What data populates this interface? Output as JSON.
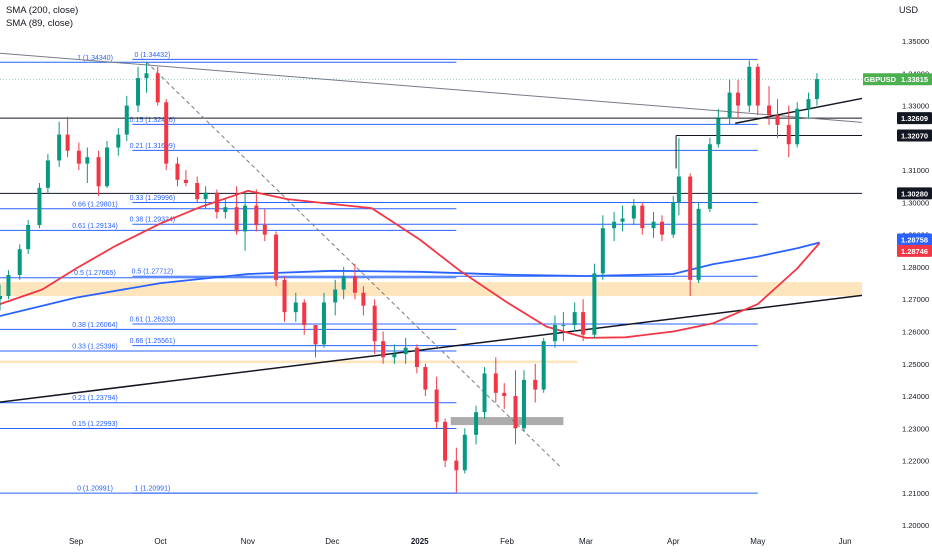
{
  "indicators": [
    "SMA (200, close)",
    "SMA (89, close)"
  ],
  "currency_label": "USD",
  "chart_data": {
    "type": "candlestick",
    "symbol": "GBPUSD",
    "last_price": "1.33815",
    "y_axis": {
      "ticks": [
        "1.35000",
        "1.34000",
        "1.33000",
        "1.32000",
        "1.31000",
        "1.30000",
        "1.29000",
        "1.28000",
        "1.27000",
        "1.26000",
        "1.25000",
        "1.24000",
        "1.23000",
        "1.22000",
        "1.21000",
        "1.20000"
      ],
      "ylim": [
        1.1985,
        1.3565
      ]
    },
    "x_axis": {
      "labels": [
        {
          "text": "Sep",
          "date": "2024-09-01"
        },
        {
          "text": "Oct",
          "date": "2024-10-01"
        },
        {
          "text": "Nov",
          "date": "2024-11-01"
        },
        {
          "text": "Dec",
          "date": "2024-12-01"
        },
        {
          "text": "2025",
          "date": "2025-01-01"
        },
        {
          "text": "Feb",
          "date": "2025-02-01"
        },
        {
          "text": "Mar",
          "date": "2025-03-01"
        },
        {
          "text": "Apr",
          "date": "2025-04-01"
        },
        {
          "text": "May",
          "date": "2025-05-01"
        },
        {
          "text": "Jun",
          "date": "2025-06-01"
        }
      ],
      "xlim": [
        "2024-08-05",
        "2025-06-07"
      ]
    },
    "price_tags": [
      {
        "value": 1.33815,
        "label": "1.33815",
        "color": "#4caf50",
        "symbol": "GBPUSD"
      },
      {
        "value": 1.32609,
        "label": "1.32609",
        "color": "#131722"
      },
      {
        "value": 1.3207,
        "label": "1.32070",
        "color": "#131722"
      },
      {
        "value": 1.3028,
        "label": "1.30280",
        "color": "#131722"
      },
      {
        "value": 1.28758,
        "label": "1.28758",
        "color": "#2962ff"
      },
      {
        "value": 1.28746,
        "label": "1.28746",
        "color": "#f23645"
      }
    ],
    "horizontal_lines": [
      {
        "value": 1.32609,
        "from": "2024-08-05",
        "to": "2025-06-07"
      },
      {
        "value": 1.3028,
        "from": "2024-08-05",
        "to": "2025-06-07"
      },
      {
        "value": 1.3207,
        "from": "2025-04-02",
        "to": "2025-06-07"
      }
    ],
    "fib_retracements": [
      {
        "color": "#2962ff",
        "from": "2024-09-21",
        "to": "2025-05-01",
        "levels": [
          {
            "label": "0 (1.34432)",
            "value": 1.34432
          },
          {
            "label": "0.15 (1.32416)",
            "value": 1.32416
          },
          {
            "label": "0.21 (1.31609)",
            "value": 1.31609
          },
          {
            "label": "0.33 (1.29996)",
            "value": 1.29996
          },
          {
            "label": "0.38 (1.29324)",
            "value": 1.29324
          },
          {
            "label": "0.5 (1.27712)",
            "value": 1.27712
          },
          {
            "label": "0.61 (1.26233)",
            "value": 1.26233
          },
          {
            "label": "0.66 (1.25561)",
            "value": 1.25561
          },
          {
            "label": "1 (1.20991)",
            "value": 1.20991
          }
        ]
      },
      {
        "color": "#2962ff",
        "from": "2024-08-05",
        "to": "2025-01-14",
        "levels": [
          {
            "label": "1 (1.34340)",
            "value": 1.3434
          },
          {
            "label": "0.66 (1.29801)",
            "value": 1.29801
          },
          {
            "label": "0.61 (1.29134)",
            "value": 1.29134
          },
          {
            "label": "0.5 (1.27665)",
            "value": 1.27665
          },
          {
            "label": "0.38 (1.26064)",
            "value": 1.26064
          },
          {
            "label": "0.33 (1.25396)",
            "value": 1.25396
          },
          {
            "label": "0.21 (1.23794)",
            "value": 1.23794
          },
          {
            "label": "0.15 (1.22993)",
            "value": 1.22993
          },
          {
            "label": "0 (1.20991)",
            "value": 1.20991
          }
        ]
      }
    ],
    "zones": [
      {
        "from": "2024-08-05",
        "to": "2025-06-07",
        "low": 1.271,
        "high": 1.2753,
        "color": "#ffe0b2"
      },
      {
        "from": "2024-08-05",
        "to": "2025-02-26",
        "low": 1.2502,
        "high": 1.251,
        "color": "#ffe0b2"
      },
      {
        "from": "2025-01-12",
        "to": "2025-02-21",
        "low": 1.231,
        "high": 1.2335,
        "color": "#9e9e9e"
      }
    ],
    "trendlines": [
      {
        "from": [
          "2024-08-05",
          1.3462
        ],
        "to": [
          "2025-06-07",
          1.3248
        ],
        "color": "#787b86",
        "width": 1
      },
      {
        "from": [
          "2024-08-05",
          1.2381
        ],
        "to": [
          "2025-06-07",
          1.2712
        ],
        "color": "#131722",
        "width": 1.5
      },
      {
        "from": [
          "2025-04-23",
          1.3245
        ],
        "to": [
          "2025-06-07",
          1.3322
        ],
        "color": "#131722",
        "width": 1.5
      },
      {
        "from": [
          "2024-09-26",
          1.3435
        ],
        "to": [
          "2025-02-20",
          1.218
        ],
        "color": "#787b86",
        "width": 1,
        "dashed": true
      }
    ],
    "sma_200": {
      "color": "#2962ff",
      "points": [
        [
          "2024-08-05",
          1.2648
        ],
        [
          "2024-09-01",
          1.2705
        ],
        [
          "2024-10-01",
          1.275
        ],
        [
          "2024-11-01",
          1.2778
        ],
        [
          "2024-12-01",
          1.2788
        ],
        [
          "2025-01-01",
          1.2785
        ],
        [
          "2025-02-01",
          1.2776
        ],
        [
          "2025-03-01",
          1.2772
        ],
        [
          "2025-04-01",
          1.2778
        ],
        [
          "2025-04-15",
          1.2808
        ],
        [
          "2025-05-01",
          1.2832
        ],
        [
          "2025-05-15",
          1.2858
        ],
        [
          "2025-05-23",
          1.28758
        ]
      ]
    },
    "sma_89": {
      "color": "#f23645",
      "points": [
        [
          "2024-08-05",
          1.2685
        ],
        [
          "2024-08-20",
          1.273
        ],
        [
          "2024-09-01",
          1.2795
        ],
        [
          "2024-09-15",
          1.2865
        ],
        [
          "2024-10-01",
          1.2935
        ],
        [
          "2024-10-15",
          1.2985
        ],
        [
          "2024-11-01",
          1.3036
        ],
        [
          "2024-11-15",
          1.301
        ],
        [
          "2024-12-01",
          1.2995
        ],
        [
          "2024-12-15",
          1.2982
        ],
        [
          "2025-01-01",
          1.2885
        ],
        [
          "2025-01-15",
          1.279
        ],
        [
          "2025-02-01",
          1.269
        ],
        [
          "2025-02-15",
          1.2615
        ],
        [
          "2025-03-01",
          1.258
        ],
        [
          "2025-03-15",
          1.2582
        ],
        [
          "2025-04-01",
          1.26
        ],
        [
          "2025-04-15",
          1.2625
        ],
        [
          "2025-05-01",
          1.2685
        ],
        [
          "2025-05-15",
          1.2795
        ],
        [
          "2025-05-23",
          1.28746
        ]
      ]
    },
    "candles": [
      [
        "2024-08-05",
        1.27,
        1.2745,
        1.2665,
        1.271
      ],
      [
        "2024-08-08",
        1.271,
        1.279,
        1.27,
        1.2775
      ],
      [
        "2024-08-12",
        1.2775,
        1.287,
        1.276,
        1.2855
      ],
      [
        "2024-08-15",
        1.2855,
        1.2945,
        1.284,
        1.293
      ],
      [
        "2024-08-19",
        1.293,
        1.306,
        1.292,
        1.3045
      ],
      [
        "2024-08-22",
        1.3045,
        1.315,
        1.303,
        1.313
      ],
      [
        "2024-08-26",
        1.313,
        1.325,
        1.311,
        1.321
      ],
      [
        "2024-08-29",
        1.321,
        1.3265,
        1.314,
        1.316
      ],
      [
        "2024-09-02",
        1.316,
        1.3185,
        1.31,
        1.312
      ],
      [
        "2024-09-05",
        1.312,
        1.317,
        1.306,
        1.314
      ],
      [
        "2024-09-09",
        1.314,
        1.316,
        1.302,
        1.305
      ],
      [
        "2024-09-12",
        1.305,
        1.319,
        1.3045,
        1.317
      ],
      [
        "2024-09-16",
        1.317,
        1.323,
        1.3145,
        1.321
      ],
      [
        "2024-09-19",
        1.321,
        1.333,
        1.319,
        1.33
      ],
      [
        "2024-09-23",
        1.33,
        1.342,
        1.328,
        1.3385
      ],
      [
        "2024-09-26",
        1.3385,
        1.3434,
        1.334,
        1.34
      ],
      [
        "2024-09-30",
        1.34,
        1.342,
        1.33,
        1.331
      ],
      [
        "2024-10-03",
        1.331,
        1.332,
        1.31,
        1.312
      ],
      [
        "2024-10-07",
        1.312,
        1.314,
        1.305,
        1.307
      ],
      [
        "2024-10-10",
        1.307,
        1.31,
        1.305,
        1.306
      ],
      [
        "2024-10-14",
        1.306,
        1.308,
        1.3,
        1.301
      ],
      [
        "2024-10-17",
        1.301,
        1.305,
        1.298,
        1.303
      ],
      [
        "2024-10-21",
        1.303,
        1.304,
        1.295,
        1.297
      ],
      [
        "2024-10-24",
        1.297,
        1.301,
        1.295,
        1.2985
      ],
      [
        "2024-10-28",
        1.2985,
        1.305,
        1.29,
        1.291
      ],
      [
        "2024-10-31",
        1.291,
        1.303,
        1.285,
        1.299
      ],
      [
        "2024-11-04",
        1.299,
        1.304,
        1.291,
        1.293
      ],
      [
        "2024-11-07",
        1.293,
        1.298,
        1.288,
        1.29
      ],
      [
        "2024-11-11",
        1.29,
        1.291,
        1.274,
        1.276
      ],
      [
        "2024-11-14",
        1.276,
        1.277,
        1.263,
        1.266
      ],
      [
        "2024-11-18",
        1.266,
        1.272,
        1.263,
        1.269
      ],
      [
        "2024-11-21",
        1.269,
        1.27,
        1.259,
        1.262
      ],
      [
        "2024-11-25",
        1.262,
        1.262,
        1.252,
        1.256
      ],
      [
        "2024-11-28",
        1.256,
        1.272,
        1.255,
        1.269
      ],
      [
        "2024-12-02",
        1.269,
        1.276,
        1.265,
        1.273
      ],
      [
        "2024-12-05",
        1.273,
        1.28,
        1.27,
        1.277
      ],
      [
        "2024-12-09",
        1.277,
        1.281,
        1.27,
        1.272
      ],
      [
        "2024-12-12",
        1.272,
        1.274,
        1.265,
        1.268
      ],
      [
        "2024-12-16",
        1.268,
        1.27,
        1.253,
        1.257
      ],
      [
        "2024-12-19",
        1.257,
        1.26,
        1.25,
        1.252
      ],
      [
        "2024-12-23",
        1.252,
        1.256,
        1.25,
        1.253
      ],
      [
        "2024-12-27",
        1.253,
        1.258,
        1.25,
        1.255
      ],
      [
        "2024-12-31",
        1.255,
        1.256,
        1.247,
        1.249
      ],
      [
        "2025-01-03",
        1.249,
        1.25,
        1.24,
        1.242
      ],
      [
        "2025-01-07",
        1.242,
        1.246,
        1.23,
        1.232
      ],
      [
        "2025-01-10",
        1.232,
        1.233,
        1.218,
        1.22
      ],
      [
        "2025-01-14",
        1.22,
        1.224,
        1.21,
        1.217
      ],
      [
        "2025-01-17",
        1.217,
        1.23,
        1.216,
        1.228
      ],
      [
        "2025-01-21",
        1.228,
        1.237,
        1.225,
        1.235
      ],
      [
        "2025-01-24",
        1.235,
        1.249,
        1.233,
        1.247
      ],
      [
        "2025-01-28",
        1.247,
        1.252,
        1.238,
        1.241
      ],
      [
        "2025-01-31",
        1.241,
        1.244,
        1.236,
        1.24
      ],
      [
        "2025-02-04",
        1.24,
        1.248,
        1.225,
        1.23
      ],
      [
        "2025-02-07",
        1.23,
        1.248,
        1.229,
        1.245
      ],
      [
        "2025-02-11",
        1.245,
        1.25,
        1.238,
        1.242
      ],
      [
        "2025-02-14",
        1.242,
        1.258,
        1.241,
        1.257
      ],
      [
        "2025-02-18",
        1.257,
        1.265,
        1.255,
        1.262
      ],
      [
        "2025-02-21",
        1.262,
        1.266,
        1.257,
        1.262
      ],
      [
        "2025-02-25",
        1.262,
        1.269,
        1.26,
        1.266
      ],
      [
        "2025-02-28",
        1.266,
        1.27,
        1.257,
        1.259
      ],
      [
        "2025-03-04",
        1.259,
        1.281,
        1.258,
        1.278
      ],
      [
        "2025-03-07",
        1.278,
        1.296,
        1.276,
        1.292
      ],
      [
        "2025-03-11",
        1.292,
        1.297,
        1.288,
        1.294
      ],
      [
        "2025-03-14",
        1.294,
        1.299,
        1.291,
        1.295
      ],
      [
        "2025-03-18",
        1.295,
        1.301,
        1.293,
        1.299
      ],
      [
        "2025-03-21",
        1.299,
        1.3,
        1.29,
        1.292
      ],
      [
        "2025-03-25",
        1.292,
        1.297,
        1.289,
        1.294
      ],
      [
        "2025-03-28",
        1.294,
        1.296,
        1.288,
        1.29
      ],
      [
        "2025-04-01",
        1.29,
        1.302,
        1.289,
        1.3
      ],
      [
        "2025-04-03",
        1.3,
        1.32,
        1.296,
        1.308
      ],
      [
        "2025-04-07",
        1.308,
        1.309,
        1.271,
        1.276
      ],
      [
        "2025-04-10",
        1.276,
        1.3,
        1.275,
        1.298
      ],
      [
        "2025-04-14",
        1.298,
        1.32,
        1.297,
        1.318
      ],
      [
        "2025-04-17",
        1.318,
        1.329,
        1.317,
        1.326
      ],
      [
        "2025-04-21",
        1.326,
        1.338,
        1.324,
        1.334
      ],
      [
        "2025-04-24",
        1.334,
        1.338,
        1.326,
        1.33
      ],
      [
        "2025-04-28",
        1.33,
        1.344,
        1.328,
        1.342
      ],
      [
        "2025-05-01",
        1.342,
        1.343,
        1.327,
        1.33
      ],
      [
        "2025-05-05",
        1.33,
        1.336,
        1.324,
        1.327
      ],
      [
        "2025-05-08",
        1.327,
        1.332,
        1.32,
        1.324
      ],
      [
        "2025-05-12",
        1.324,
        1.33,
        1.314,
        1.318
      ],
      [
        "2025-05-15",
        1.318,
        1.331,
        1.317,
        1.329
      ],
      [
        "2025-05-19",
        1.329,
        1.334,
        1.326,
        1.332
      ],
      [
        "2025-05-22",
        1.332,
        1.34,
        1.33,
        1.3382
      ]
    ]
  }
}
